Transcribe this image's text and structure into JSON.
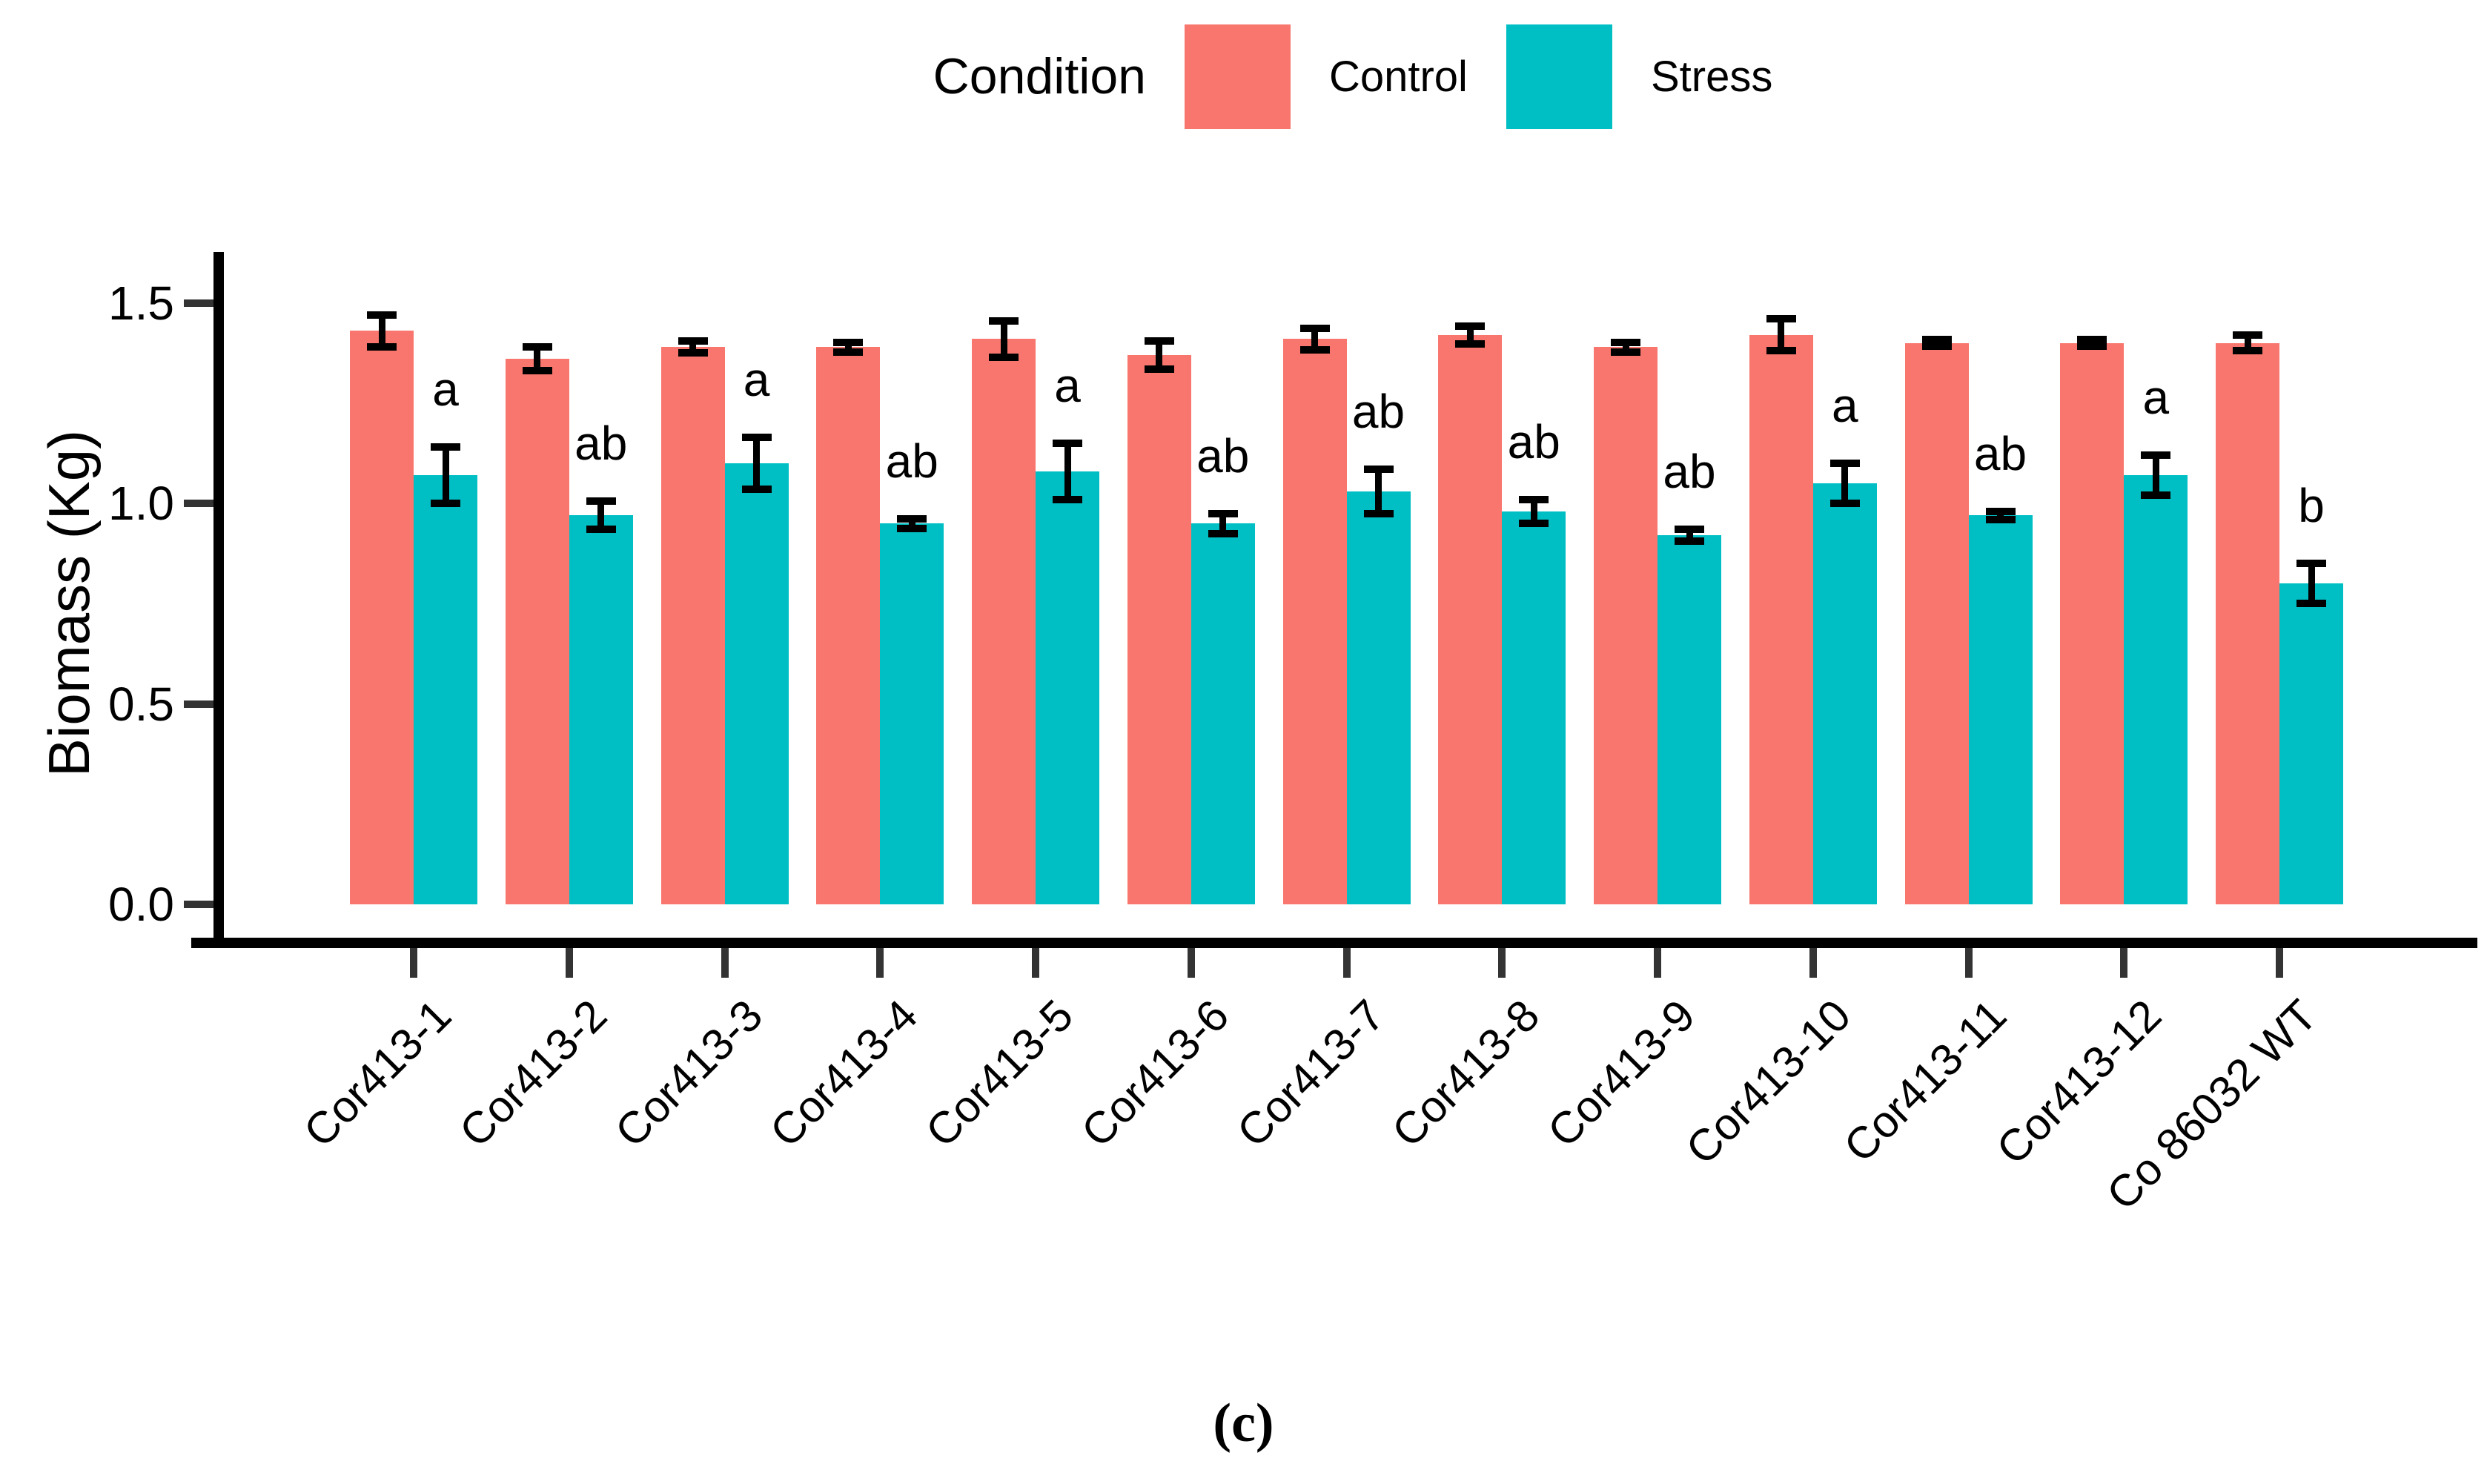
{
  "caption": "(c)",
  "chart_data": {
    "type": "bar",
    "title": "",
    "xlabel": "",
    "ylabel": "Biomass (Kg)",
    "ylim": [
      0,
      1.5
    ],
    "yticks": [
      0.0,
      0.5,
      1.0,
      1.5
    ],
    "ytick_labels": [
      "0.0",
      "0.5",
      "1.0",
      "1.5"
    ],
    "grid": false,
    "legend": {
      "title": "Condition",
      "position": "top",
      "items": [
        {
          "label": "Control",
          "color": "#F8766D"
        },
        {
          "label": "Stress",
          "color": "#00BFC4"
        }
      ]
    },
    "categories": [
      "Cor413-1",
      "Cor413-2",
      "Cor413-3",
      "Cor413-4",
      "Cor413-5",
      "Cor413-6",
      "Cor413-7",
      "Cor413-8",
      "Cor413-9",
      "Cor413-10",
      "Cor413-11",
      "Cor413-12",
      "Co 86032 WT"
    ],
    "series": [
      {
        "name": "Control",
        "color": "#F8766D",
        "values": [
          1.43,
          1.36,
          1.39,
          1.39,
          1.41,
          1.37,
          1.41,
          1.42,
          1.39,
          1.42,
          1.4,
          1.4,
          1.4
        ],
        "errors": [
          0.04,
          0.03,
          0.015,
          0.012,
          0.045,
          0.035,
          0.027,
          0.022,
          0.012,
          0.04,
          0.008,
          0.008,
          0.02
        ]
      },
      {
        "name": "Stress",
        "color": "#00BFC4",
        "values": [
          1.07,
          0.97,
          1.1,
          0.95,
          1.08,
          0.95,
          1.03,
          0.98,
          0.92,
          1.05,
          0.97,
          1.07,
          0.8
        ],
        "errors": [
          0.07,
          0.035,
          0.065,
          0.012,
          0.07,
          0.025,
          0.055,
          0.03,
          0.015,
          0.05,
          0.01,
          0.05,
          0.05
        ]
      }
    ],
    "sig_letters": [
      "a",
      "ab",
      "a",
      "ab",
      "a",
      "ab",
      "ab",
      "ab",
      "ab",
      "a",
      "ab",
      "a",
      "b"
    ],
    "error_bar_color": "#000000",
    "axis_color": "#000000"
  }
}
